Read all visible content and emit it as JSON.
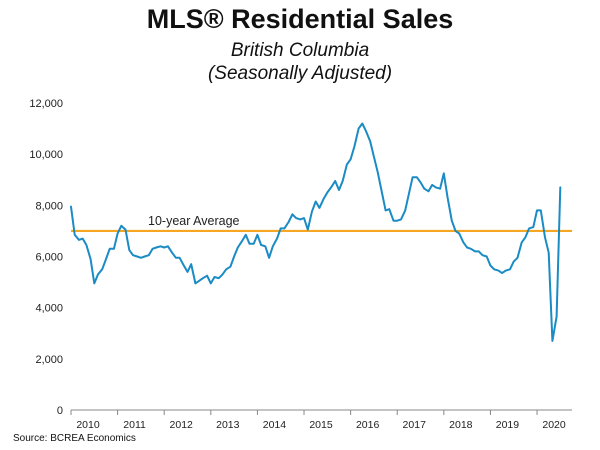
{
  "chart_data": {
    "type": "line",
    "title": "MLS® Residential Sales",
    "subtitle_lines": [
      "British Columbia",
      "(Seasonally Adjusted)"
    ],
    "xlabel": "",
    "ylabel": "",
    "ylim": [
      0,
      12000
    ],
    "xlim": [
      2010,
      2020.75
    ],
    "y_ticks": [
      0,
      2000,
      4000,
      6000,
      8000,
      10000,
      12000
    ],
    "y_tick_labels": [
      "0",
      "2,000",
      "4,000",
      "6,000",
      "8,000",
      "10,000",
      "12,000"
    ],
    "x_ticks": [
      2010,
      2011,
      2012,
      2013,
      2014,
      2015,
      2016,
      2017,
      2018,
      2019,
      2020
    ],
    "x_tick_labels": [
      "2010",
      "2011",
      "2012",
      "2013",
      "2014",
      "2015",
      "2016",
      "2017",
      "2018",
      "2019",
      "2020"
    ],
    "grid": false,
    "reference_line": {
      "label": "10-year Average",
      "value": 7000,
      "color": "#F5A623"
    },
    "series": [
      {
        "color": "#1A8BC4",
        "x": [
          2010.0,
          2010.08,
          2010.17,
          2010.25,
          2010.33,
          2010.42,
          2010.5,
          2010.58,
          2010.67,
          2010.75,
          2010.83,
          2010.92,
          2011.0,
          2011.08,
          2011.17,
          2011.25,
          2011.33,
          2011.42,
          2011.5,
          2011.58,
          2011.67,
          2011.75,
          2011.83,
          2011.92,
          2012.0,
          2012.08,
          2012.17,
          2012.25,
          2012.33,
          2012.42,
          2012.5,
          2012.58,
          2012.67,
          2012.75,
          2012.83,
          2012.92,
          2013.0,
          2013.08,
          2013.17,
          2013.25,
          2013.33,
          2013.42,
          2013.5,
          2013.58,
          2013.67,
          2013.75,
          2013.83,
          2013.92,
          2014.0,
          2014.08,
          2014.17,
          2014.25,
          2014.33,
          2014.42,
          2014.5,
          2014.58,
          2014.67,
          2014.75,
          2014.83,
          2014.92,
          2015.0,
          2015.08,
          2015.17,
          2015.25,
          2015.33,
          2015.42,
          2015.5,
          2015.58,
          2015.67,
          2015.75,
          2015.83,
          2015.92,
          2016.0,
          2016.08,
          2016.17,
          2016.25,
          2016.33,
          2016.42,
          2016.5,
          2016.58,
          2016.67,
          2016.75,
          2016.83,
          2016.92,
          2017.0,
          2017.08,
          2017.17,
          2017.25,
          2017.33,
          2017.42,
          2017.5,
          2017.58,
          2017.67,
          2017.75,
          2017.83,
          2017.92,
          2018.0,
          2018.08,
          2018.17,
          2018.25,
          2018.33,
          2018.42,
          2018.5,
          2018.58,
          2018.67,
          2018.75,
          2018.83,
          2018.92,
          2019.0,
          2019.08,
          2019.17,
          2019.25,
          2019.33,
          2019.42,
          2019.5,
          2019.58,
          2019.67,
          2019.75,
          2019.83,
          2019.92,
          2020.0,
          2020.08,
          2020.17,
          2020.25,
          2020.33,
          2020.42,
          2020.5
        ],
        "y": [
          7950,
          6850,
          6650,
          6700,
          6450,
          5900,
          4950,
          5300,
          5500,
          5900,
          6300,
          6300,
          6900,
          7200,
          7050,
          6250,
          6050,
          6000,
          5950,
          6000,
          6050,
          6300,
          6350,
          6400,
          6350,
          6400,
          6150,
          5950,
          5950,
          5650,
          5400,
          5700,
          4950,
          5050,
          5150,
          5250,
          4950,
          5200,
          5150,
          5300,
          5500,
          5600,
          6000,
          6350,
          6600,
          6850,
          6500,
          6500,
          6850,
          6450,
          6400,
          5950,
          6400,
          6700,
          7100,
          7100,
          7350,
          7650,
          7500,
          7450,
          7500,
          7050,
          7750,
          8150,
          7900,
          8250,
          8500,
          8700,
          8950,
          8600,
          8950,
          9600,
          9800,
          10300,
          11000,
          11200,
          10900,
          10500,
          9900,
          9300,
          8500,
          7800,
          7850,
          7400,
          7400,
          7450,
          7800,
          8450,
          9100,
          9100,
          8900,
          8650,
          8550,
          8800,
          8700,
          8650,
          9250,
          8300,
          7400,
          7000,
          6900,
          6550,
          6350,
          6300,
          6200,
          6200,
          6050,
          6000,
          5650,
          5500,
          5450,
          5350,
          5450,
          5500,
          5800,
          5950,
          6550,
          6750,
          7100,
          7150,
          7800,
          7800,
          6750,
          6150,
          2700,
          3650,
          8700
        ]
      }
    ],
    "source": "Source: BCREA Economics"
  }
}
